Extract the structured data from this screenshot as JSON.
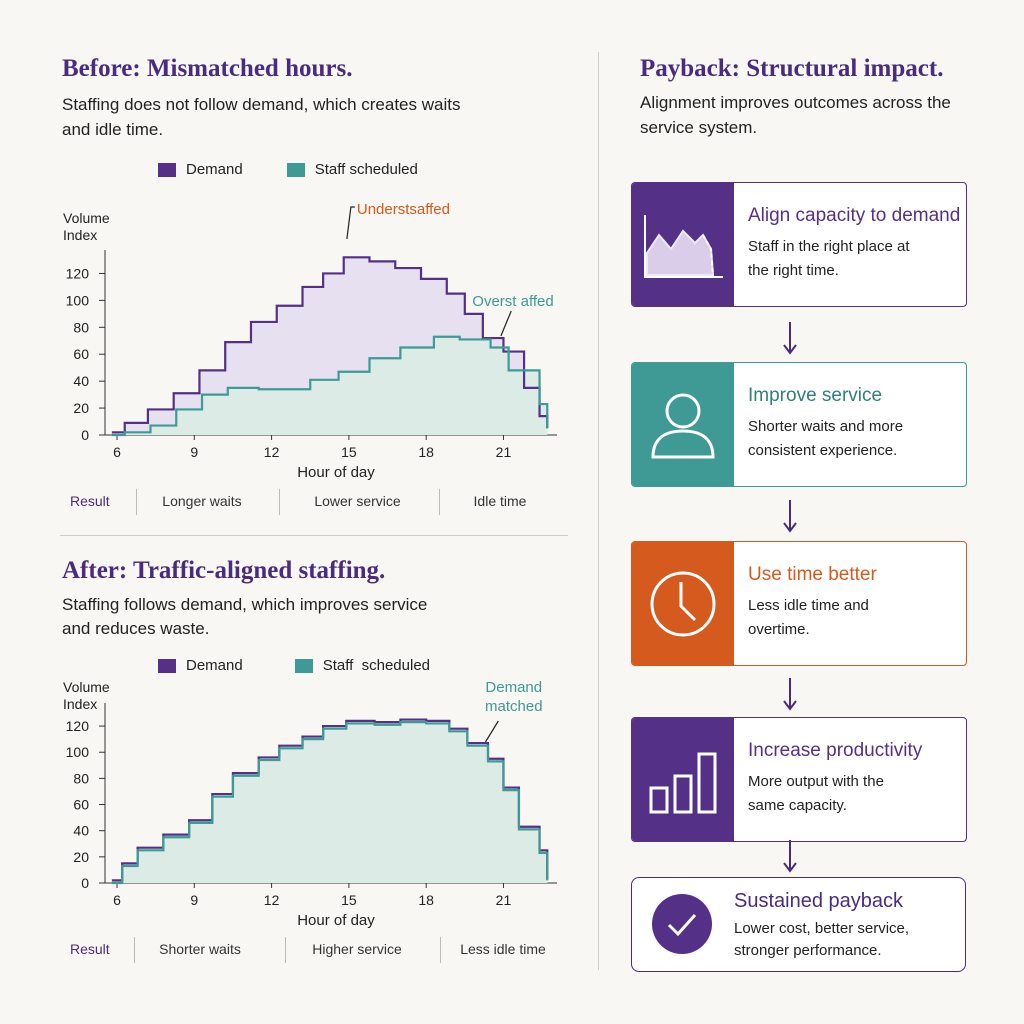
{
  "colors": {
    "purple": "#553087",
    "teal": "#3f9a95",
    "orange": "#d55a1e",
    "demand_fill": "#e7e0f0",
    "staff_fill": "#dcebe6"
  },
  "before": {
    "heading": "Before: Mismatched hours.",
    "subtitle_line1": "Staffing does not follow demand, which creates waits",
    "subtitle_line2": "and idle time.",
    "legend_demand": "Demand",
    "legend_staff": "Staff scheduled",
    "result_label": "Result",
    "results": [
      "Longer waits",
      "Lower service",
      "Idle time"
    ]
  },
  "after": {
    "heading": "After: Traffic-aligned staffing.",
    "subtitle_line1": "Staffing follows demand, which improves service",
    "subtitle_line2": "and reduces waste.",
    "legend_demand": "Demand",
    "legend_staff": "Staff  scheduled",
    "result_label": "Result",
    "results": [
      "Shorter waits",
      "Higher service",
      "Less idle time"
    ]
  },
  "payback": {
    "heading": "Payback: Structural impact.",
    "subtitle_line1": "Alignment improves outcomes across the",
    "subtitle_line2": "service system.",
    "cards": [
      {
        "title": "Align capacity to demand",
        "line1": "Staff in the right place at",
        "line2": "the right time.",
        "color": "#553087",
        "icon": "area-chart-icon"
      },
      {
        "title": "Improve service",
        "line1": "Shorter waits and more",
        "line2": "consistent experience.",
        "color": "#3f9a95",
        "icon": "person-icon"
      },
      {
        "title": "Use time better",
        "line1": "Less idle time and",
        "line2": "overtime.",
        "color": "#d55a1e",
        "icon": "clock-icon"
      },
      {
        "title": "Increase productivity",
        "line1": "More output with the",
        "line2": "same capacity.",
        "color": "#553087",
        "icon": "bar-chart-icon"
      }
    ],
    "final": {
      "title": "Sustained payback",
      "line1": "Lower cost, better service,",
      "line2": "stronger performance.",
      "icon": "check-circle-icon"
    }
  },
  "chart_data": [
    {
      "type": "area",
      "step": true,
      "title": "Before: Mismatched hours.",
      "xlabel": "Hour of day",
      "ylabel_line1": "Volume",
      "ylabel_line2": "Index",
      "xlim": [
        6,
        23
      ],
      "ylim": [
        0,
        130
      ],
      "xticks": [
        6,
        9,
        12,
        15,
        18,
        21
      ],
      "yticks": [
        0,
        20,
        40,
        60,
        80,
        100,
        120
      ],
      "annotations": [
        {
          "text": "Understsaffed",
          "x": 15,
          "y": 132,
          "color": "#d55a1e"
        },
        {
          "text": "Overst affed",
          "x": 21,
          "y": 92,
          "color": "#3f9a95"
        }
      ],
      "series": [
        {
          "name": "Demand",
          "color": "#553087",
          "x": [
            5.8,
            6.3,
            7.2,
            8.2,
            9.2,
            10.2,
            11.2,
            12.2,
            13.2,
            14.0,
            14.8,
            15.8,
            16.8,
            17.8,
            18.8,
            19.5,
            20.2,
            21.0,
            21.8,
            22.4,
            22.7
          ],
          "y": [
            2,
            9,
            19,
            31,
            48,
            69,
            84,
            96,
            110,
            120,
            132,
            129,
            124,
            116,
            105,
            90,
            72,
            62,
            35,
            14,
            5
          ]
        },
        {
          "name": "Staff scheduled",
          "color": "#3f9a95",
          "x": [
            5.8,
            6.3,
            7.3,
            8.3,
            9.3,
            10.3,
            11.5,
            12.5,
            13.5,
            14.6,
            15.8,
            17.0,
            18.3,
            19.3,
            20.5,
            21.2,
            22.4,
            22.7
          ],
          "y": [
            0,
            2,
            7,
            19,
            30,
            35,
            34,
            34,
            41,
            47,
            57,
            65,
            73,
            71,
            65,
            48,
            23,
            5
          ]
        }
      ]
    },
    {
      "type": "area",
      "step": true,
      "title": "After: Traffic-aligned staffing.",
      "xlabel": "Hour of day",
      "ylabel_line1": "Volume",
      "ylabel_line2": "Index",
      "xlim": [
        6,
        23
      ],
      "ylim": [
        0,
        130
      ],
      "xticks": [
        6,
        9,
        12,
        15,
        18,
        21
      ],
      "yticks": [
        0,
        20,
        40,
        60,
        80,
        100,
        120
      ],
      "annotations": [
        {
          "text": "Demand",
          "text2": "matched",
          "x": 20.5,
          "y": 114,
          "color": "#3f9a95"
        }
      ],
      "series": [
        {
          "name": "Demand",
          "color": "#553087",
          "x": [
            5.8,
            6.2,
            6.8,
            7.8,
            8.8,
            9.7,
            10.5,
            11.5,
            12.3,
            13.2,
            14.0,
            14.9,
            16.0,
            17.0,
            18.0,
            18.9,
            19.6,
            20.4,
            21.0,
            21.6,
            22.4,
            22.7
          ],
          "y": [
            2,
            15,
            27,
            37,
            48,
            68,
            84,
            96,
            105,
            112,
            120,
            124,
            123,
            125,
            124,
            118,
            107,
            95,
            73,
            43,
            25,
            3
          ]
        },
        {
          "name": "Staff scheduled",
          "color": "#3f9a95",
          "x": [
            5.8,
            6.2,
            6.8,
            7.8,
            8.8,
            9.7,
            10.5,
            11.5,
            12.3,
            13.2,
            14.0,
            14.9,
            16.0,
            17.0,
            18.0,
            18.9,
            19.6,
            20.4,
            21.0,
            21.6,
            22.4,
            22.7
          ],
          "y": [
            0,
            13,
            25,
            35,
            46,
            66,
            82,
            94,
            103,
            110,
            118,
            122,
            121,
            123,
            122,
            116,
            105,
            93,
            71,
            41,
            23,
            2
          ]
        }
      ]
    }
  ]
}
